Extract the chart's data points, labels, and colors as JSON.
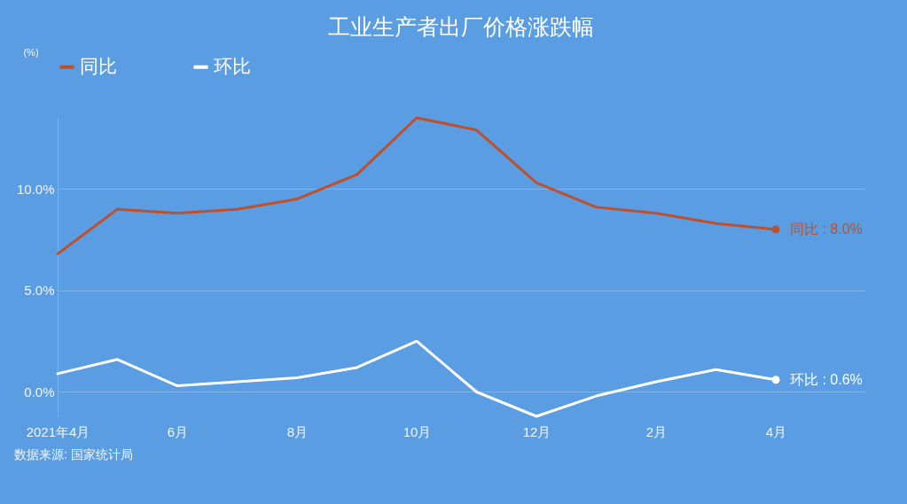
{
  "chart_data": {
    "type": "line",
    "title": "工业生产者出厂价格涨跌幅",
    "categories": [
      "2021年4月",
      null,
      "6月",
      null,
      "8月",
      null,
      "10月",
      null,
      "12月",
      null,
      "2月",
      null,
      "4月"
    ],
    "series": [
      {
        "name": "同比",
        "color": "#c0502a",
        "values": [
          6.8,
          9.0,
          8.8,
          9.0,
          9.5,
          10.7,
          13.5,
          12.9,
          10.3,
          9.1,
          8.8,
          8.3,
          8.0
        ]
      },
      {
        "name": "环比",
        "color": "#ffffff",
        "values": [
          0.9,
          1.6,
          0.3,
          0.5,
          0.7,
          1.2,
          2.5,
          0.0,
          -1.2,
          -0.2,
          0.5,
          1.1,
          0.6
        ]
      }
    ],
    "ylim": [
      -1.2,
      13.5
    ],
    "yticks": [
      {
        "value": 0,
        "label": "0.0%"
      },
      {
        "value": 5,
        "label": "5.0%"
      },
      {
        "value": 10,
        "label": "10.0%"
      }
    ],
    "grid": "y",
    "legend": "top left",
    "line_style": "solid",
    "annotations": [
      "(%)",
      {
        "text": "同比 : 8.0%",
        "x": "4月",
        "y": 8.0
      },
      {
        "text": "环比 : 0.6%",
        "x": "4月",
        "y": 0.6
      },
      "数据来源: 国家统计局"
    ]
  }
}
